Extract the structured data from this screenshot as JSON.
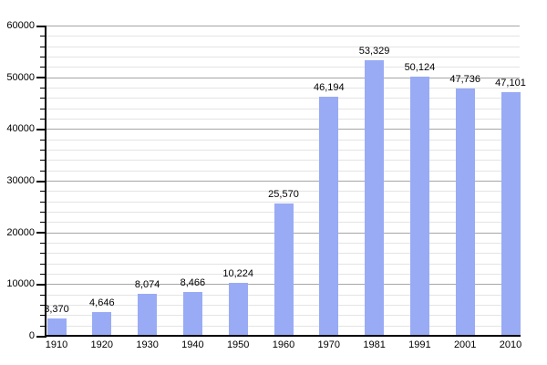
{
  "chart_data": {
    "type": "bar",
    "title": "",
    "xlabel": "",
    "ylabel": "",
    "categories": [
      "1910",
      "1920",
      "1930",
      "1940",
      "1950",
      "1960",
      "1970",
      "1981",
      "1991",
      "2001",
      "2010"
    ],
    "values": [
      3370,
      4646,
      8074,
      8466,
      10224,
      25570,
      46194,
      53329,
      50124,
      47736,
      47101
    ],
    "value_labels": [
      "3,370",
      "4,646",
      "8,074",
      "8,466",
      "10,224",
      "25,570",
      "46,194",
      "53,329",
      "50,124",
      "47,736",
      "47,101"
    ],
    "ylim": [
      0,
      60000
    ],
    "y_major_ticks": [
      0,
      10000,
      20000,
      30000,
      40000,
      50000,
      60000
    ],
    "y_tick_labels": [
      "0",
      "10000",
      "20000",
      "30000",
      "40000",
      "50000",
      "60000"
    ],
    "y_minor_step": 2000,
    "grid": true,
    "legend_position": "none",
    "colors": {
      "bar_fill": "#99ABF5",
      "major_grid": "#A6A6A6",
      "minor_grid": "#E4E4E4",
      "axis": "#000000",
      "text": "#000000",
      "background": "#FFFFFF"
    }
  }
}
